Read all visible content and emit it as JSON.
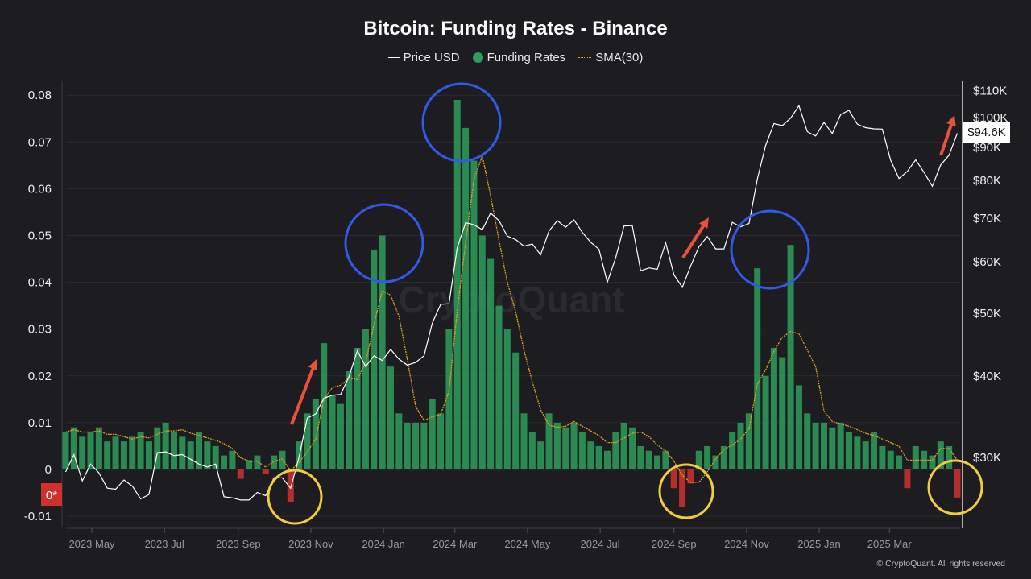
{
  "chart_data": {
    "type": "bar+line",
    "title": "Bitcoin: Funding Rates - Binance",
    "legend": [
      "Price USD",
      "Funding Rates",
      "SMA(30)"
    ],
    "legend_placement": "top-center",
    "watermark": "CryptoQuant",
    "footer": "© CryptoQuant. All rights reserved",
    "colors": {
      "price": "#ffffff",
      "funding_positive": "#2e9e5b",
      "funding_negative": "#d0312d",
      "sma": "#e0a020",
      "annot_blue": "#2f5bea",
      "annot_yellow": "#f2cc3c",
      "annot_arrow": "#e8513a"
    },
    "left_axis": {
      "ticks": [
        "0.08",
        "0.07",
        "0.06",
        "0.05",
        "0.04",
        "0.03",
        "0.02",
        "0.01",
        "0",
        "-0.01"
      ],
      "range": [
        -0.012,
        0.082
      ],
      "zero_marker": "0*"
    },
    "right_axis": {
      "scale": "log",
      "ticks": [
        "$110K",
        "$100K",
        "$90K",
        "$80K",
        "$70K",
        "$60K",
        "$50K",
        "$40K",
        "$30K"
      ],
      "current_price_label": "$94.6K"
    },
    "x_ticks": [
      "2023 May",
      "2023 Jul",
      "2023 Sep",
      "2023 Nov",
      "2024 Jan",
      "2024 Mar",
      "2024 May",
      "2024 Jul",
      "2024 Sep",
      "2024 Nov",
      "2025 Jan",
      "2025 Mar"
    ],
    "grid": true,
    "x": [
      "2023-04-09",
      "2023-04-16",
      "2023-04-23",
      "2023-04-30",
      "2023-05-07",
      "2023-05-14",
      "2023-05-21",
      "2023-05-28",
      "2023-06-04",
      "2023-06-11",
      "2023-06-18",
      "2023-06-25",
      "2023-07-02",
      "2023-07-09",
      "2023-07-16",
      "2023-07-23",
      "2023-07-30",
      "2023-08-06",
      "2023-08-13",
      "2023-08-20",
      "2023-08-27",
      "2023-09-03",
      "2023-09-10",
      "2023-09-17",
      "2023-09-24",
      "2023-10-01",
      "2023-10-08",
      "2023-10-15",
      "2023-10-22",
      "2023-10-29",
      "2023-11-05",
      "2023-11-12",
      "2023-11-19",
      "2023-11-26",
      "2023-12-03",
      "2023-12-10",
      "2023-12-17",
      "2023-12-24",
      "2023-12-31",
      "2024-01-07",
      "2024-01-14",
      "2024-01-21",
      "2024-01-28",
      "2024-02-04",
      "2024-02-11",
      "2024-02-18",
      "2024-02-25",
      "2024-03-03",
      "2024-03-10",
      "2024-03-17",
      "2024-03-24",
      "2024-03-31",
      "2024-04-07",
      "2024-04-14",
      "2024-04-21",
      "2024-04-28",
      "2024-05-05",
      "2024-05-12",
      "2024-05-19",
      "2024-05-26",
      "2024-06-02",
      "2024-06-09",
      "2024-06-16",
      "2024-06-23",
      "2024-06-30",
      "2024-07-07",
      "2024-07-14",
      "2024-07-21",
      "2024-07-28",
      "2024-08-04",
      "2024-08-11",
      "2024-08-18",
      "2024-08-25",
      "2024-09-01",
      "2024-09-08",
      "2024-09-15",
      "2024-09-22",
      "2024-09-29",
      "2024-10-06",
      "2024-10-13",
      "2024-10-20",
      "2024-10-27",
      "2024-11-03",
      "2024-11-10",
      "2024-11-17",
      "2024-11-24",
      "2024-12-01",
      "2024-12-08",
      "2024-12-15",
      "2024-12-22",
      "2024-12-29",
      "2025-01-05",
      "2025-01-12",
      "2025-01-19",
      "2025-01-26",
      "2025-02-02",
      "2025-02-09",
      "2025-02-16",
      "2025-02-23",
      "2025-03-02",
      "2025-03-09",
      "2025-03-16",
      "2025-03-23",
      "2025-03-30",
      "2025-04-06",
      "2025-04-13",
      "2025-04-20",
      "2025-04-27"
    ],
    "series": [
      {
        "name": "Price USD",
        "unit": "USD thousands",
        "values": [
          28.5,
          30.3,
          27.6,
          29.3,
          28.4,
          26.9,
          26.8,
          27.7,
          27.1,
          25.9,
          26.3,
          30.5,
          30.6,
          30.2,
          30.3,
          29.8,
          29.3,
          29.0,
          29.3,
          26.1,
          26.0,
          25.8,
          25.8,
          26.5,
          26.2,
          27.9,
          27.9,
          26.9,
          30.0,
          34.5,
          35.0,
          37.0,
          37.4,
          37.5,
          39.9,
          43.8,
          41.4,
          43.0,
          42.3,
          44.0,
          42.5,
          41.6,
          42.0,
          43.0,
          48.3,
          51.6,
          51.7,
          63.1,
          68.9,
          68.4,
          67.2,
          71.3,
          69.4,
          65.7,
          64.9,
          63.4,
          63.9,
          61.5,
          66.9,
          69.4,
          67.8,
          69.6,
          66.6,
          64.3,
          62.7,
          55.8,
          60.8,
          68.1,
          68.2,
          58.1,
          58.7,
          58.4,
          64.2,
          57.3,
          54.8,
          59.1,
          63.3,
          65.6,
          62.8,
          62.8,
          69.0,
          67.9,
          68.7,
          80.4,
          90.6,
          97.9,
          97.2,
          99.8,
          104.3,
          95.1,
          93.7,
          98.3,
          94.5,
          101.1,
          102.6,
          97.7,
          96.5,
          96.1,
          96.0,
          86.0,
          80.6,
          82.6,
          86.1,
          82.4,
          78.4,
          84.5,
          87.5,
          94.6
        ]
      },
      {
        "name": "Funding Rates",
        "values": [
          0.008,
          0.009,
          0.007,
          0.008,
          0.009,
          0.006,
          0.007,
          0.006,
          0.007,
          0.008,
          0.006,
          0.009,
          0.01,
          0.008,
          0.007,
          0.006,
          0.008,
          0.006,
          0.005,
          0.003,
          0.004,
          -0.002,
          0.002,
          0.003,
          -0.001,
          0.003,
          0.004,
          -0.007,
          0.006,
          0.012,
          0.015,
          0.027,
          0.016,
          0.014,
          0.021,
          0.026,
          0.03,
          0.047,
          0.05,
          0.022,
          0.012,
          0.01,
          0.01,
          0.01,
          0.015,
          0.012,
          0.03,
          0.079,
          0.073,
          0.066,
          0.05,
          0.045,
          0.035,
          0.03,
          0.025,
          0.012,
          0.008,
          0.006,
          0.012,
          0.01,
          0.009,
          0.01,
          0.008,
          0.006,
          0.005,
          0.004,
          0.008,
          0.01,
          0.009,
          0.005,
          0.004,
          0.003,
          0.004,
          -0.004,
          -0.008,
          -0.003,
          0.004,
          0.005,
          0.003,
          0.005,
          0.008,
          0.01,
          0.012,
          0.043,
          0.02,
          0.026,
          0.024,
          0.048,
          0.018,
          0.012,
          0.01,
          0.01,
          0.009,
          0.01,
          0.008,
          0.007,
          0.006,
          0.008,
          0.005,
          0.004,
          0.003,
          -0.004,
          0.005,
          0.004,
          0.003,
          0.006,
          0.005,
          -0.006
        ]
      },
      {
        "name": "SMA(30)",
        "window_days": 30
      }
    ]
  }
}
